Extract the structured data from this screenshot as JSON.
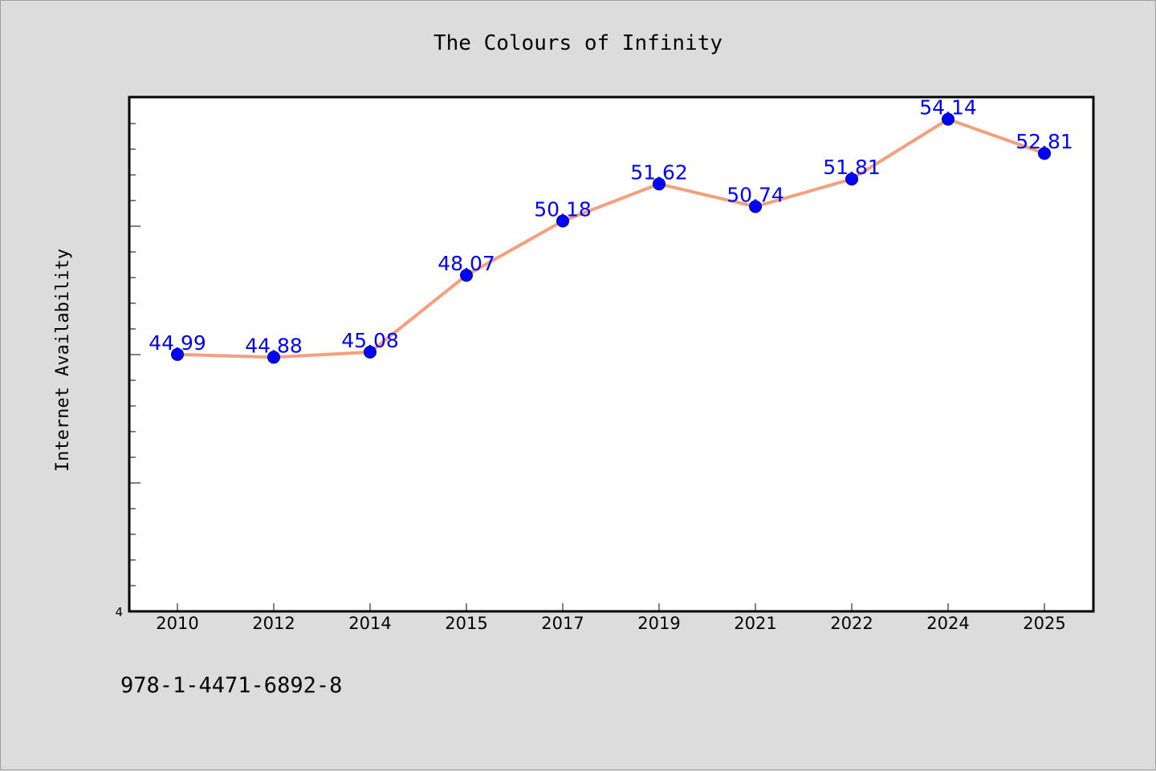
{
  "chart_data": {
    "type": "line",
    "title": "The Colours of Infinity",
    "xlabel": "",
    "ylabel": "Internet Availability",
    "categories": [
      "2010",
      "2012",
      "2014",
      "2015",
      "2017",
      "2019",
      "2021",
      "2022",
      "2024",
      "2025"
    ],
    "series": [
      {
        "values": [
          44.99,
          44.88,
          45.08,
          48.07,
          50.18,
          51.62,
          50.74,
          51.81,
          54.14,
          52.81
        ]
      }
    ],
    "data_labels": [
      "44.99",
      "44.88",
      "45.08",
      "48.07",
      "50.18",
      "51.62",
      "50.74",
      "51.81",
      "54.14",
      "52.81"
    ],
    "ylim": [
      35,
      55
    ],
    "y_tick_labels": [
      "4"
    ],
    "grid": false,
    "legend": "none",
    "colors": {
      "line": "#f4a07c",
      "marker": "#0000ff",
      "data_label": "#0000ff",
      "plot_background": "#ffffff",
      "page_background": "#dcdcdc"
    }
  },
  "footnote": "978-1-4471-6892-8"
}
